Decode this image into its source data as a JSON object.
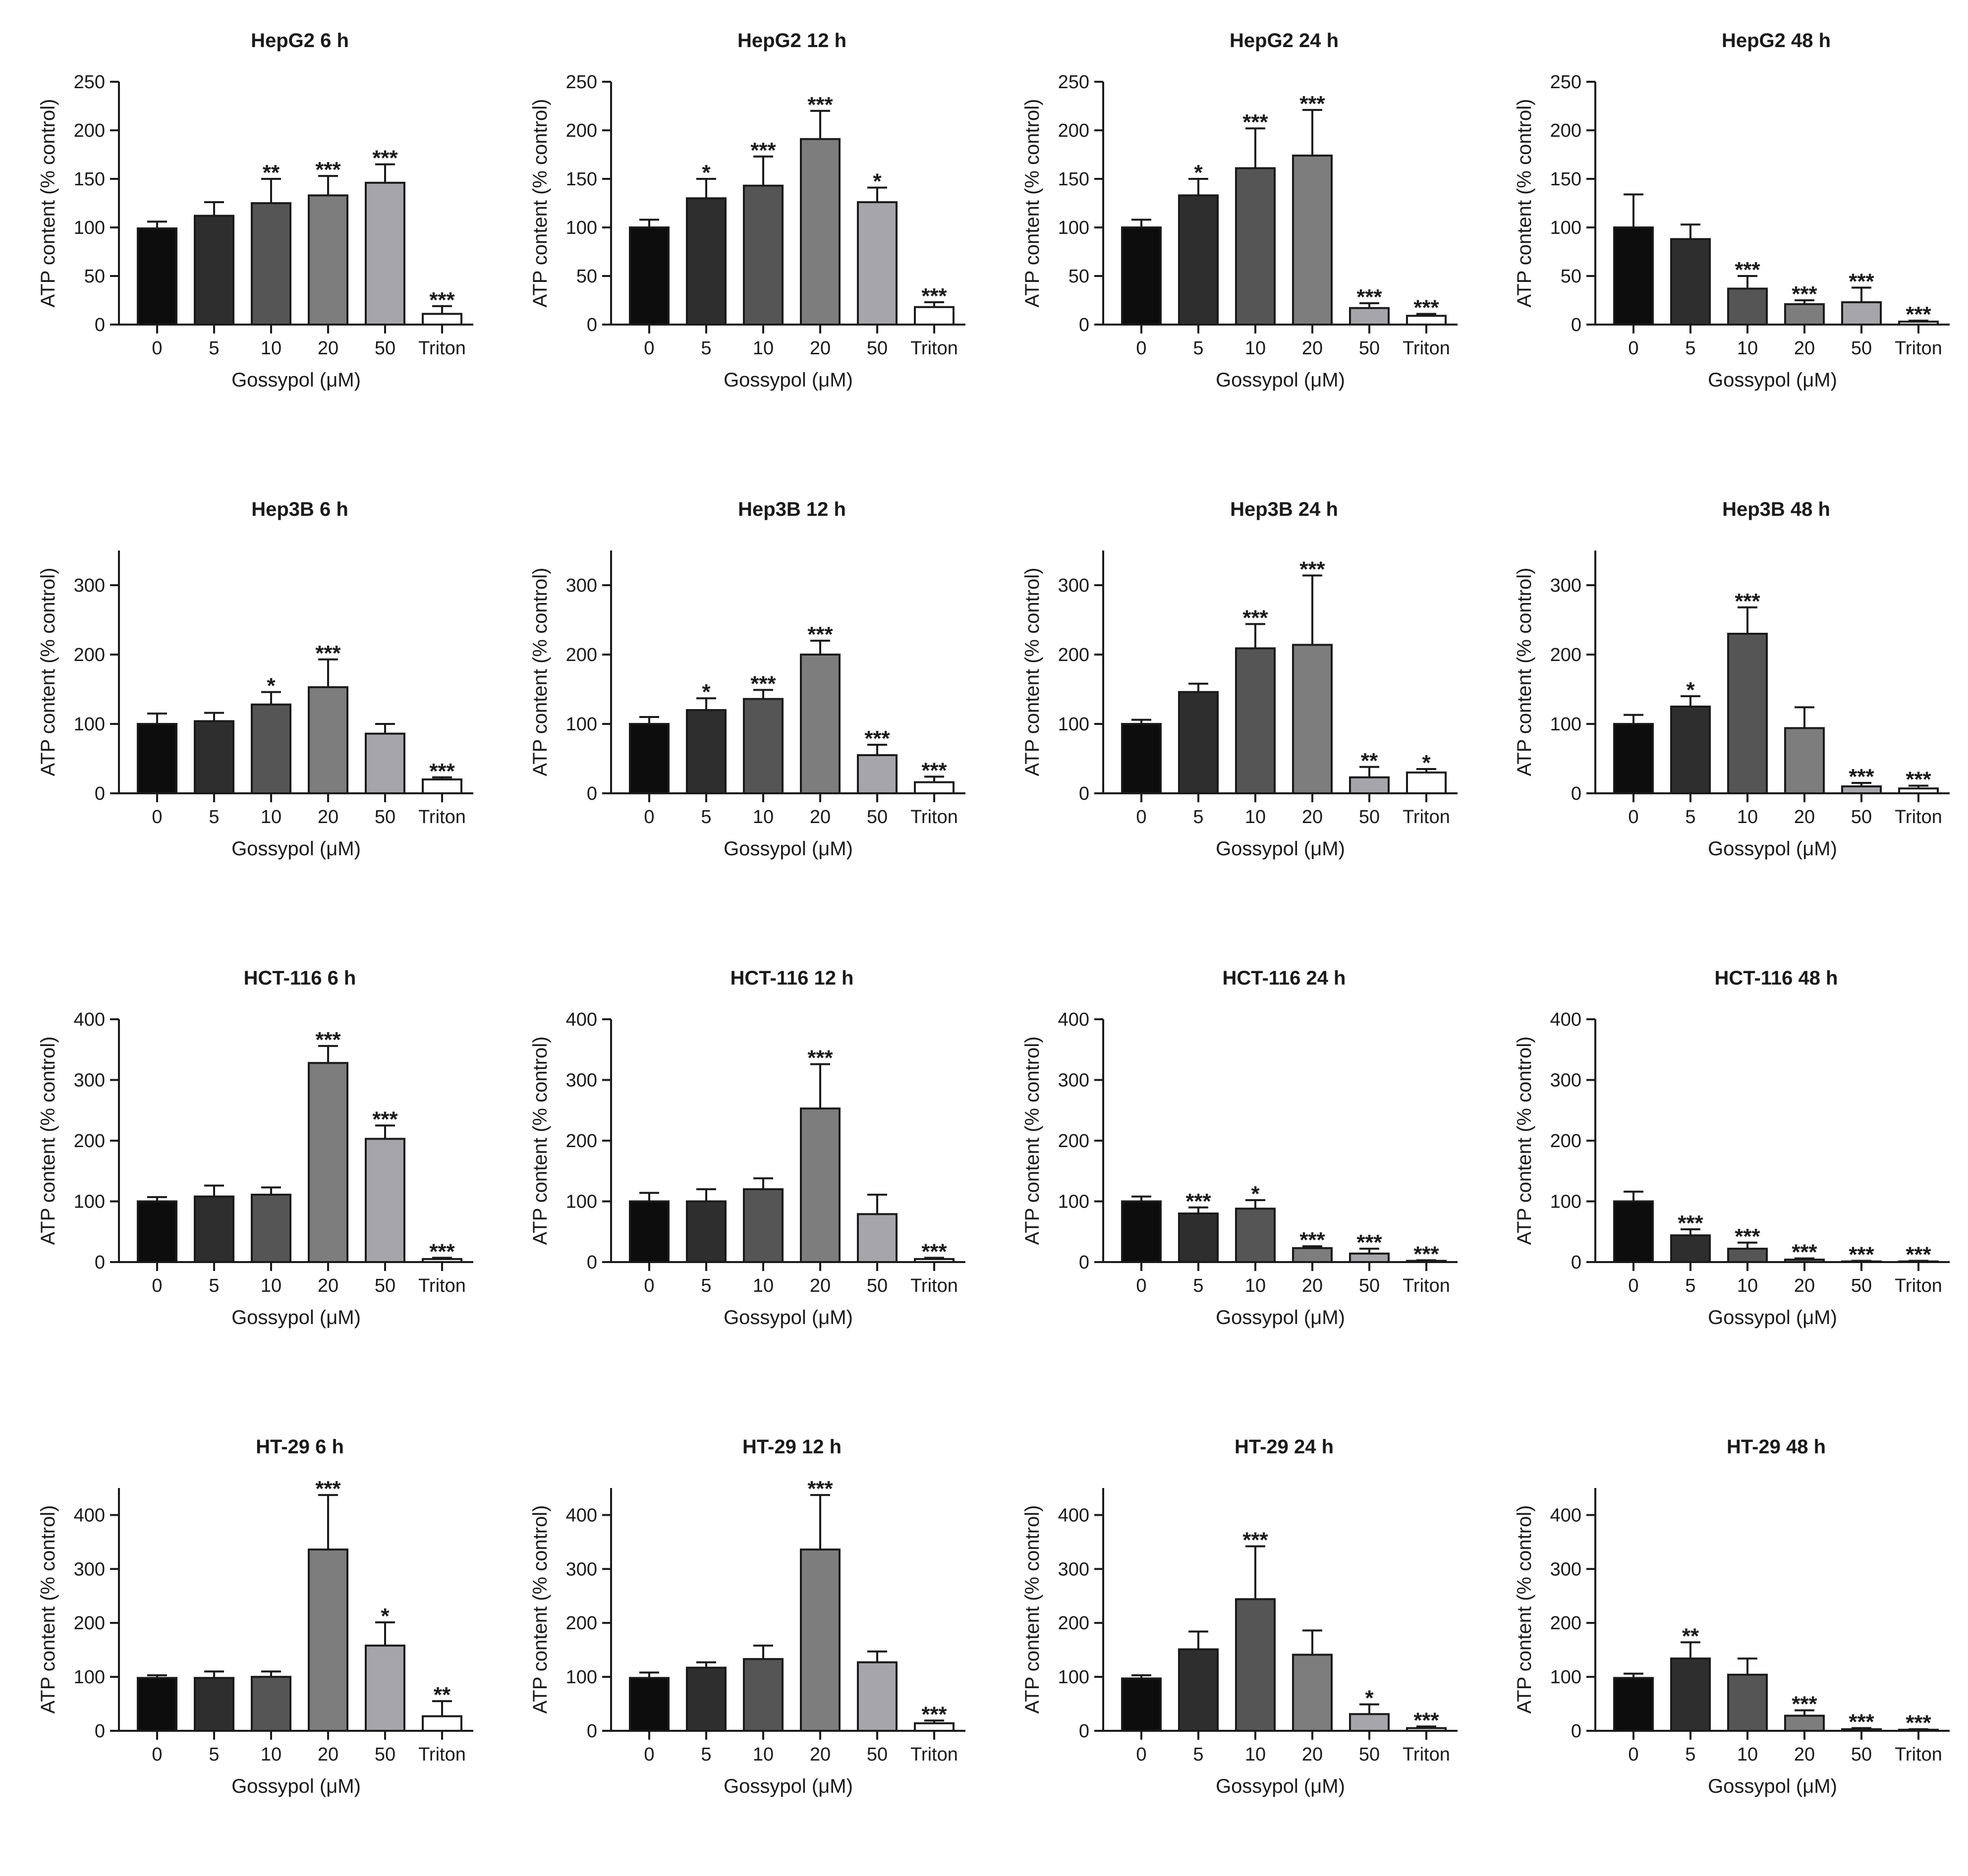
{
  "figure": {
    "x_categories": [
      "0",
      "5",
      "10",
      "20",
      "50",
      "Triton"
    ],
    "xlabel": "Gossypol (μM)",
    "ylabel": "ATP content (% control)",
    "bar_colors": [
      "#0d0d0d",
      "#2e2e2e",
      "#555555",
      "#7d7d7d",
      "#a6a6aa",
      "#ffffff"
    ],
    "axis_color": "#1a1a1a"
  },
  "chart_data": [
    {
      "type": "bar",
      "title": "HepG2 6 h",
      "ylim": [
        0,
        250
      ],
      "yticks": [
        0,
        50,
        100,
        150,
        200,
        250
      ],
      "values": [
        99,
        112,
        125,
        133,
        146,
        11
      ],
      "errors": [
        7,
        14,
        25,
        20,
        19,
        8
      ],
      "significance": [
        "",
        "",
        "**",
        "***",
        "***",
        "***"
      ]
    },
    {
      "type": "bar",
      "title": "HepG2 12 h",
      "ylim": [
        0,
        250
      ],
      "yticks": [
        0,
        50,
        100,
        150,
        200,
        250
      ],
      "values": [
        100,
        130,
        143,
        191,
        126,
        18
      ],
      "errors": [
        8,
        20,
        30,
        29,
        15,
        5
      ],
      "significance": [
        "",
        "*",
        "***",
        "***",
        "*",
        "***"
      ]
    },
    {
      "type": "bar",
      "title": "HepG2 24 h",
      "ylim": [
        0,
        250
      ],
      "yticks": [
        0,
        50,
        100,
        150,
        200,
        250
      ],
      "values": [
        100,
        133,
        161,
        174,
        17,
        9
      ],
      "errors": [
        8,
        17,
        41,
        47,
        5,
        2
      ],
      "significance": [
        "",
        "*",
        "***",
        "***",
        "***",
        "***"
      ]
    },
    {
      "type": "bar",
      "title": "HepG2 48 h",
      "ylim": [
        0,
        250
      ],
      "yticks": [
        0,
        50,
        100,
        150,
        200,
        250
      ],
      "values": [
        100,
        88,
        37,
        21,
        23,
        3
      ],
      "errors": [
        34,
        15,
        13,
        4,
        15,
        1
      ],
      "significance": [
        "",
        "",
        "***",
        "***",
        "***",
        "***"
      ]
    },
    {
      "type": "bar",
      "title": "Hep3B 6 h",
      "ylim": [
        0,
        350
      ],
      "yticks": [
        0,
        100,
        200,
        300
      ],
      "values": [
        100,
        104,
        128,
        153,
        86,
        20
      ],
      "errors": [
        15,
        12,
        18,
        40,
        14,
        3
      ],
      "significance": [
        "",
        "",
        "*",
        "***",
        "",
        "***"
      ]
    },
    {
      "type": "bar",
      "title": "Hep3B 12 h",
      "ylim": [
        0,
        350
      ],
      "yticks": [
        0,
        100,
        200,
        300
      ],
      "values": [
        100,
        120,
        136,
        200,
        55,
        16
      ],
      "errors": [
        10,
        17,
        13,
        20,
        15,
        8
      ],
      "significance": [
        "",
        "*",
        "***",
        "***",
        "***",
        "***"
      ]
    },
    {
      "type": "bar",
      "title": "Hep3B 24 h",
      "ylim": [
        0,
        350
      ],
      "yticks": [
        0,
        100,
        200,
        300
      ],
      "values": [
        100,
        146,
        209,
        214,
        23,
        30
      ],
      "errors": [
        6,
        12,
        35,
        100,
        15,
        5
      ],
      "significance": [
        "",
        "",
        "***",
        "***",
        "**",
        "*"
      ]
    },
    {
      "type": "bar",
      "title": "Hep3B 48 h",
      "ylim": [
        0,
        350
      ],
      "yticks": [
        0,
        100,
        200,
        300
      ],
      "values": [
        100,
        125,
        230,
        94,
        10,
        7
      ],
      "errors": [
        13,
        15,
        38,
        30,
        5,
        4
      ],
      "significance": [
        "",
        "*",
        "***",
        "",
        "***",
        "***"
      ]
    },
    {
      "type": "bar",
      "title": "HCT-116 6 h",
      "ylim": [
        0,
        400
      ],
      "yticks": [
        0,
        100,
        200,
        300,
        400
      ],
      "values": [
        100,
        108,
        111,
        328,
        203,
        5
      ],
      "errors": [
        7,
        18,
        12,
        28,
        22,
        2
      ],
      "significance": [
        "",
        "",
        "",
        "***",
        "***",
        "***"
      ]
    },
    {
      "type": "bar",
      "title": "HCT-116 12 h",
      "ylim": [
        0,
        400
      ],
      "yticks": [
        0,
        100,
        200,
        300,
        400
      ],
      "values": [
        100,
        100,
        120,
        253,
        79,
        5
      ],
      "errors": [
        14,
        20,
        18,
        73,
        32,
        2
      ],
      "significance": [
        "",
        "",
        "",
        "***",
        "",
        "***"
      ]
    },
    {
      "type": "bar",
      "title": "HCT-116 24 h",
      "ylim": [
        0,
        400
      ],
      "yticks": [
        0,
        100,
        200,
        300,
        400
      ],
      "values": [
        100,
        80,
        88,
        23,
        14,
        2
      ],
      "errors": [
        8,
        10,
        14,
        3,
        8,
        1
      ],
      "significance": [
        "",
        "***",
        "*",
        "***",
        "***",
        "***"
      ]
    },
    {
      "type": "bar",
      "title": "HCT-116 48 h",
      "ylim": [
        0,
        400
      ],
      "yticks": [
        0,
        100,
        200,
        300,
        400
      ],
      "values": [
        100,
        44,
        22,
        4,
        1,
        1
      ],
      "errors": [
        16,
        10,
        10,
        2,
        1,
        1
      ],
      "significance": [
        "",
        "***",
        "***",
        "***",
        "***",
        "***"
      ]
    },
    {
      "type": "bar",
      "title": "HT-29 6 h",
      "ylim": [
        0,
        450
      ],
      "yticks": [
        0,
        100,
        200,
        300,
        400
      ],
      "values": [
        98,
        98,
        100,
        336,
        158,
        27
      ],
      "errors": [
        5,
        12,
        10,
        101,
        43,
        28
      ],
      "significance": [
        "",
        "",
        "",
        "***",
        "*",
        "**"
      ]
    },
    {
      "type": "bar",
      "title": "HT-29 12 h",
      "ylim": [
        0,
        450
      ],
      "yticks": [
        0,
        100,
        200,
        300,
        400
      ],
      "values": [
        98,
        117,
        133,
        336,
        127,
        14
      ],
      "errors": [
        10,
        10,
        25,
        101,
        20,
        5
      ],
      "significance": [
        "",
        "",
        "",
        "***",
        "",
        "***"
      ]
    },
    {
      "type": "bar",
      "title": "HT-29 24 h",
      "ylim": [
        0,
        450
      ],
      "yticks": [
        0,
        100,
        200,
        300,
        400
      ],
      "values": [
        97,
        151,
        244,
        141,
        31,
        5
      ],
      "errors": [
        6,
        33,
        98,
        45,
        18,
        3
      ],
      "significance": [
        "",
        "",
        "***",
        "",
        "*",
        "***"
      ]
    },
    {
      "type": "bar",
      "title": "HT-29 48 h",
      "ylim": [
        0,
        450
      ],
      "yticks": [
        0,
        100,
        200,
        300,
        400
      ],
      "values": [
        98,
        134,
        104,
        28,
        3,
        2
      ],
      "errors": [
        8,
        30,
        30,
        10,
        2,
        1
      ],
      "significance": [
        "",
        "**",
        "",
        "***",
        "***",
        "***"
      ]
    }
  ]
}
